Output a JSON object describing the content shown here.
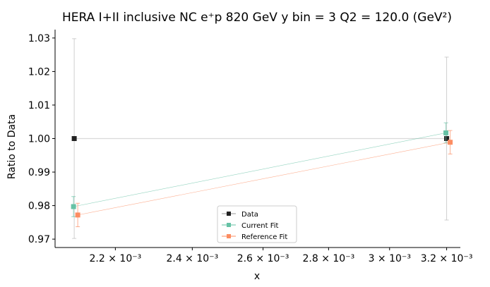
{
  "chart_data": {
    "type": "line",
    "title": "HERA I+II inclusive NC e⁺p 820 GeV y bin = 3 Q2 = 120.0 (GeV²)",
    "xlabel": "x",
    "ylabel": "Ratio to Data",
    "xscale": "log",
    "xlim": [
      0.002055,
      0.00325
    ],
    "ylim": [
      0.9675,
      1.0325
    ],
    "x_ticks": [
      {
        "value": 0.0022,
        "label": "2.2 × 10⁻³"
      },
      {
        "value": 0.0024,
        "label": "2.4 × 10⁻³"
      },
      {
        "value": 0.0026,
        "label": "2.6 × 10⁻³"
      },
      {
        "value": 0.0028,
        "label": "2.8 × 10⁻³"
      },
      {
        "value": 0.003,
        "label": "3 × 10⁻³"
      },
      {
        "value": 0.0032,
        "label": "3.2 × 10⁻³"
      }
    ],
    "y_ticks": [
      {
        "value": 0.97,
        "label": "0.97"
      },
      {
        "value": 0.98,
        "label": "0.98"
      },
      {
        "value": 0.99,
        "label": "0.99"
      },
      {
        "value": 1.0,
        "label": "1.00"
      },
      {
        "value": 1.01,
        "label": "1.01"
      },
      {
        "value": 1.02,
        "label": "1.02"
      },
      {
        "value": 1.03,
        "label": "1.03"
      }
    ],
    "grid": false,
    "legend_position": "lower-center",
    "series": [
      {
        "name": "Data",
        "color": "#222222",
        "x": [
          0.0021,
          0.0032
        ],
        "y": [
          1.0,
          1.0
        ],
        "yerr": [
          0.0298,
          0.0243
        ]
      },
      {
        "name": "Current Fit",
        "color": "#66c2a5",
        "x": [
          0.0021,
          0.0032
        ],
        "y": [
          0.9797,
          1.0017
        ],
        "yerr": [
          0.003,
          0.003
        ]
      },
      {
        "name": "Reference Fit",
        "color": "#fc8d62",
        "x": [
          0.0021,
          0.0032
        ],
        "y": [
          0.9772,
          0.9989
        ],
        "yerr": [
          0.0035,
          0.0035
        ]
      }
    ]
  }
}
